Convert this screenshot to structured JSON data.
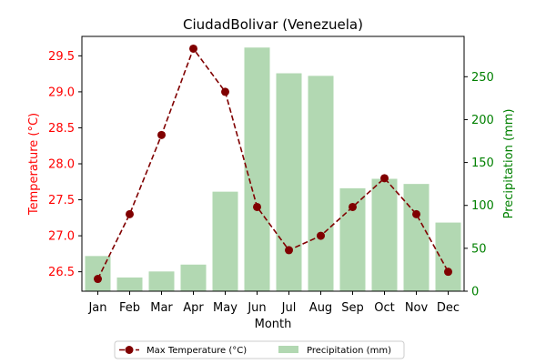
{
  "chart_data": {
    "type": "bar+line",
    "title": "CiudadBolivar (Venezuela)",
    "xlabel": "Month",
    "categories": [
      "Jan",
      "Feb",
      "Mar",
      "Apr",
      "May",
      "Jun",
      "Jul",
      "Aug",
      "Sep",
      "Oct",
      "Nov",
      "Dec"
    ],
    "left_axis": {
      "label": "Temperature (°C)",
      "color": "#ff0000",
      "ylim": [
        26.23,
        29.77
      ],
      "ticks": [
        "26.5",
        "27.0",
        "27.5",
        "28.0",
        "28.5",
        "29.0",
        "29.5"
      ]
    },
    "right_axis": {
      "label": "Precipitation (mm)",
      "color": "#008000",
      "ylim": [
        0,
        297
      ],
      "ticks": [
        "0",
        "50",
        "100",
        "150",
        "200",
        "250"
      ]
    },
    "series": [
      {
        "name": "Max Temperature (°C)",
        "kind": "line",
        "axis": "left",
        "color": "#800000",
        "line_style": "dashed",
        "marker": "circle",
        "values": [
          26.4,
          27.3,
          28.4,
          29.6,
          29.0,
          27.4,
          26.8,
          27.0,
          27.4,
          27.8,
          27.3,
          26.5
        ]
      },
      {
        "name": "Precipitation (mm)",
        "kind": "bar",
        "axis": "right",
        "color": "#b2d8b2",
        "values": [
          41,
          16,
          23,
          31,
          116,
          284,
          254,
          251,
          120,
          131,
          125,
          80
        ]
      }
    ],
    "grid": false,
    "legend": {
      "placement": "bottom-center",
      "columns": 2
    }
  }
}
